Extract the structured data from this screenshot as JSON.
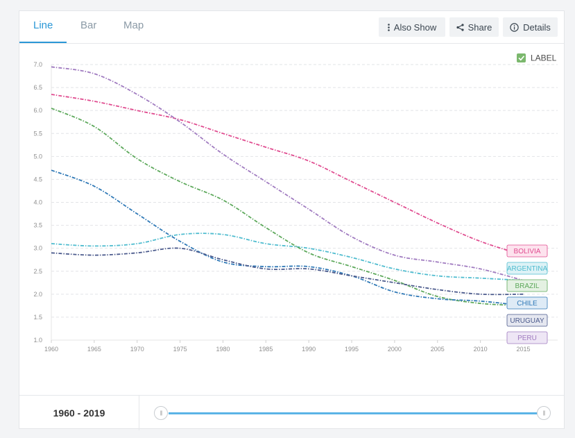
{
  "tabs": [
    {
      "label": "Line",
      "active": true
    },
    {
      "label": "Bar",
      "active": false
    },
    {
      "label": "Map",
      "active": false
    }
  ],
  "toolbar": {
    "also_show_label": "Also Show",
    "share_label": "Share",
    "details_label": "Details"
  },
  "legend": {
    "label_toggle": "LABEL",
    "checked": true
  },
  "footer": {
    "year_range": "1960 - 2019",
    "range_start": 1960,
    "range_end": 2019
  },
  "chart_data": {
    "type": "line",
    "title": "",
    "xlabel": "",
    "ylabel": "",
    "xlim": [
      1960,
      2019
    ],
    "ylim": [
      1.0,
      7.0
    ],
    "x_ticks": [
      "1960",
      "1965",
      "1970",
      "1975",
      "1980",
      "1985",
      "1990",
      "1995",
      "2000",
      "2005",
      "2010",
      "2015"
    ],
    "y_ticks": [
      "1.0",
      "1.5",
      "2.0",
      "2.5",
      "3.0",
      "3.5",
      "4.0",
      "4.5",
      "5.0",
      "5.5",
      "6.0",
      "6.5",
      "7.0"
    ],
    "grid": true,
    "x": [
      1960,
      1965,
      1970,
      1975,
      1980,
      1985,
      1990,
      1995,
      2000,
      2005,
      2010,
      2015
    ],
    "series": [
      {
        "name": "BOLIVIA",
        "color": "#e04b8f",
        "label_bg": "#fde3ee",
        "values": [
          6.35,
          6.2,
          6.0,
          5.8,
          5.5,
          5.2,
          4.9,
          4.45,
          4.0,
          3.55,
          3.15,
          2.85
        ]
      },
      {
        "name": "ARGENTINA",
        "color": "#4fbccf",
        "label_bg": "#ddf2f6",
        "values": [
          3.1,
          3.05,
          3.1,
          3.3,
          3.3,
          3.1,
          3.0,
          2.8,
          2.55,
          2.4,
          2.35,
          2.3
        ]
      },
      {
        "name": "BRAZIL",
        "color": "#5ca85a",
        "label_bg": "#e4f1e2",
        "values": [
          6.05,
          5.65,
          4.95,
          4.45,
          4.05,
          3.45,
          2.9,
          2.6,
          2.3,
          1.95,
          1.8,
          1.75
        ]
      },
      {
        "name": "CHILE",
        "color": "#2e78b6",
        "label_bg": "#deebf6",
        "values": [
          4.7,
          4.35,
          3.75,
          3.15,
          2.7,
          2.6,
          2.6,
          2.4,
          2.05,
          1.9,
          1.85,
          1.75
        ]
      },
      {
        "name": "URUGUAY",
        "color": "#4b5a8c",
        "label_bg": "#e5e7f0",
        "values": [
          2.9,
          2.85,
          2.9,
          3.0,
          2.75,
          2.55,
          2.55,
          2.4,
          2.25,
          2.1,
          2.0,
          2.0
        ]
      },
      {
        "name": "PERU",
        "color": "#a07bc0",
        "label_bg": "#eee6f5",
        "values": [
          6.95,
          6.8,
          6.35,
          5.75,
          5.05,
          4.45,
          3.85,
          3.25,
          2.85,
          2.7,
          2.55,
          2.3
        ]
      }
    ]
  }
}
